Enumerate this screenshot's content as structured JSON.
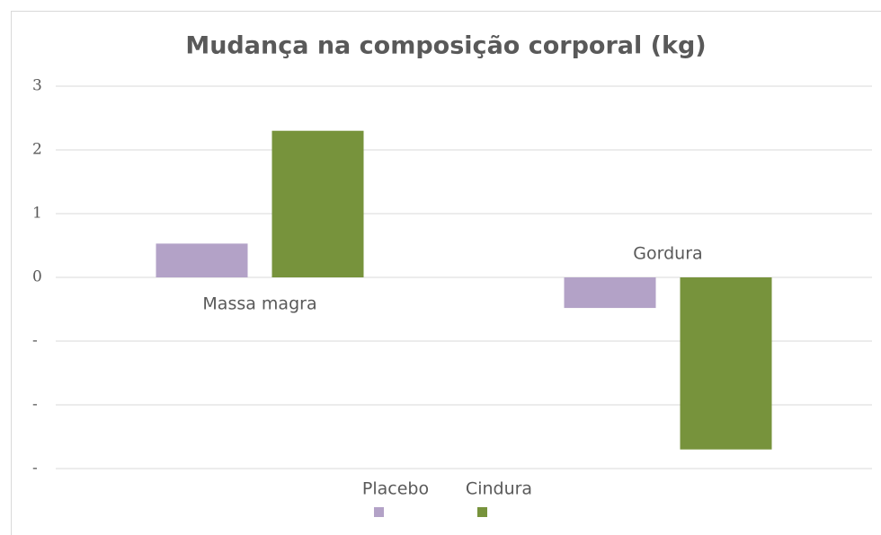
{
  "chart_data": {
    "type": "bar",
    "title": "Mudança na composição corporal (kg)",
    "categories": [
      "Massa magra",
      "Gordura"
    ],
    "series": [
      {
        "name": "Placebo",
        "color": "#b3a2c7",
        "values": [
          0.53,
          -0.48
        ]
      },
      {
        "name": "Cindura",
        "color": "#77933c",
        "values": [
          2.3,
          -2.7
        ]
      }
    ],
    "ylim": [
      -3,
      3
    ],
    "yticks": [
      {
        "value": -3,
        "label": "-"
      },
      {
        "value": -2,
        "label": "-"
      },
      {
        "value": -1,
        "label": "-"
      },
      0,
      1,
      2,
      3
    ],
    "grid": true,
    "legend": "bottom"
  }
}
